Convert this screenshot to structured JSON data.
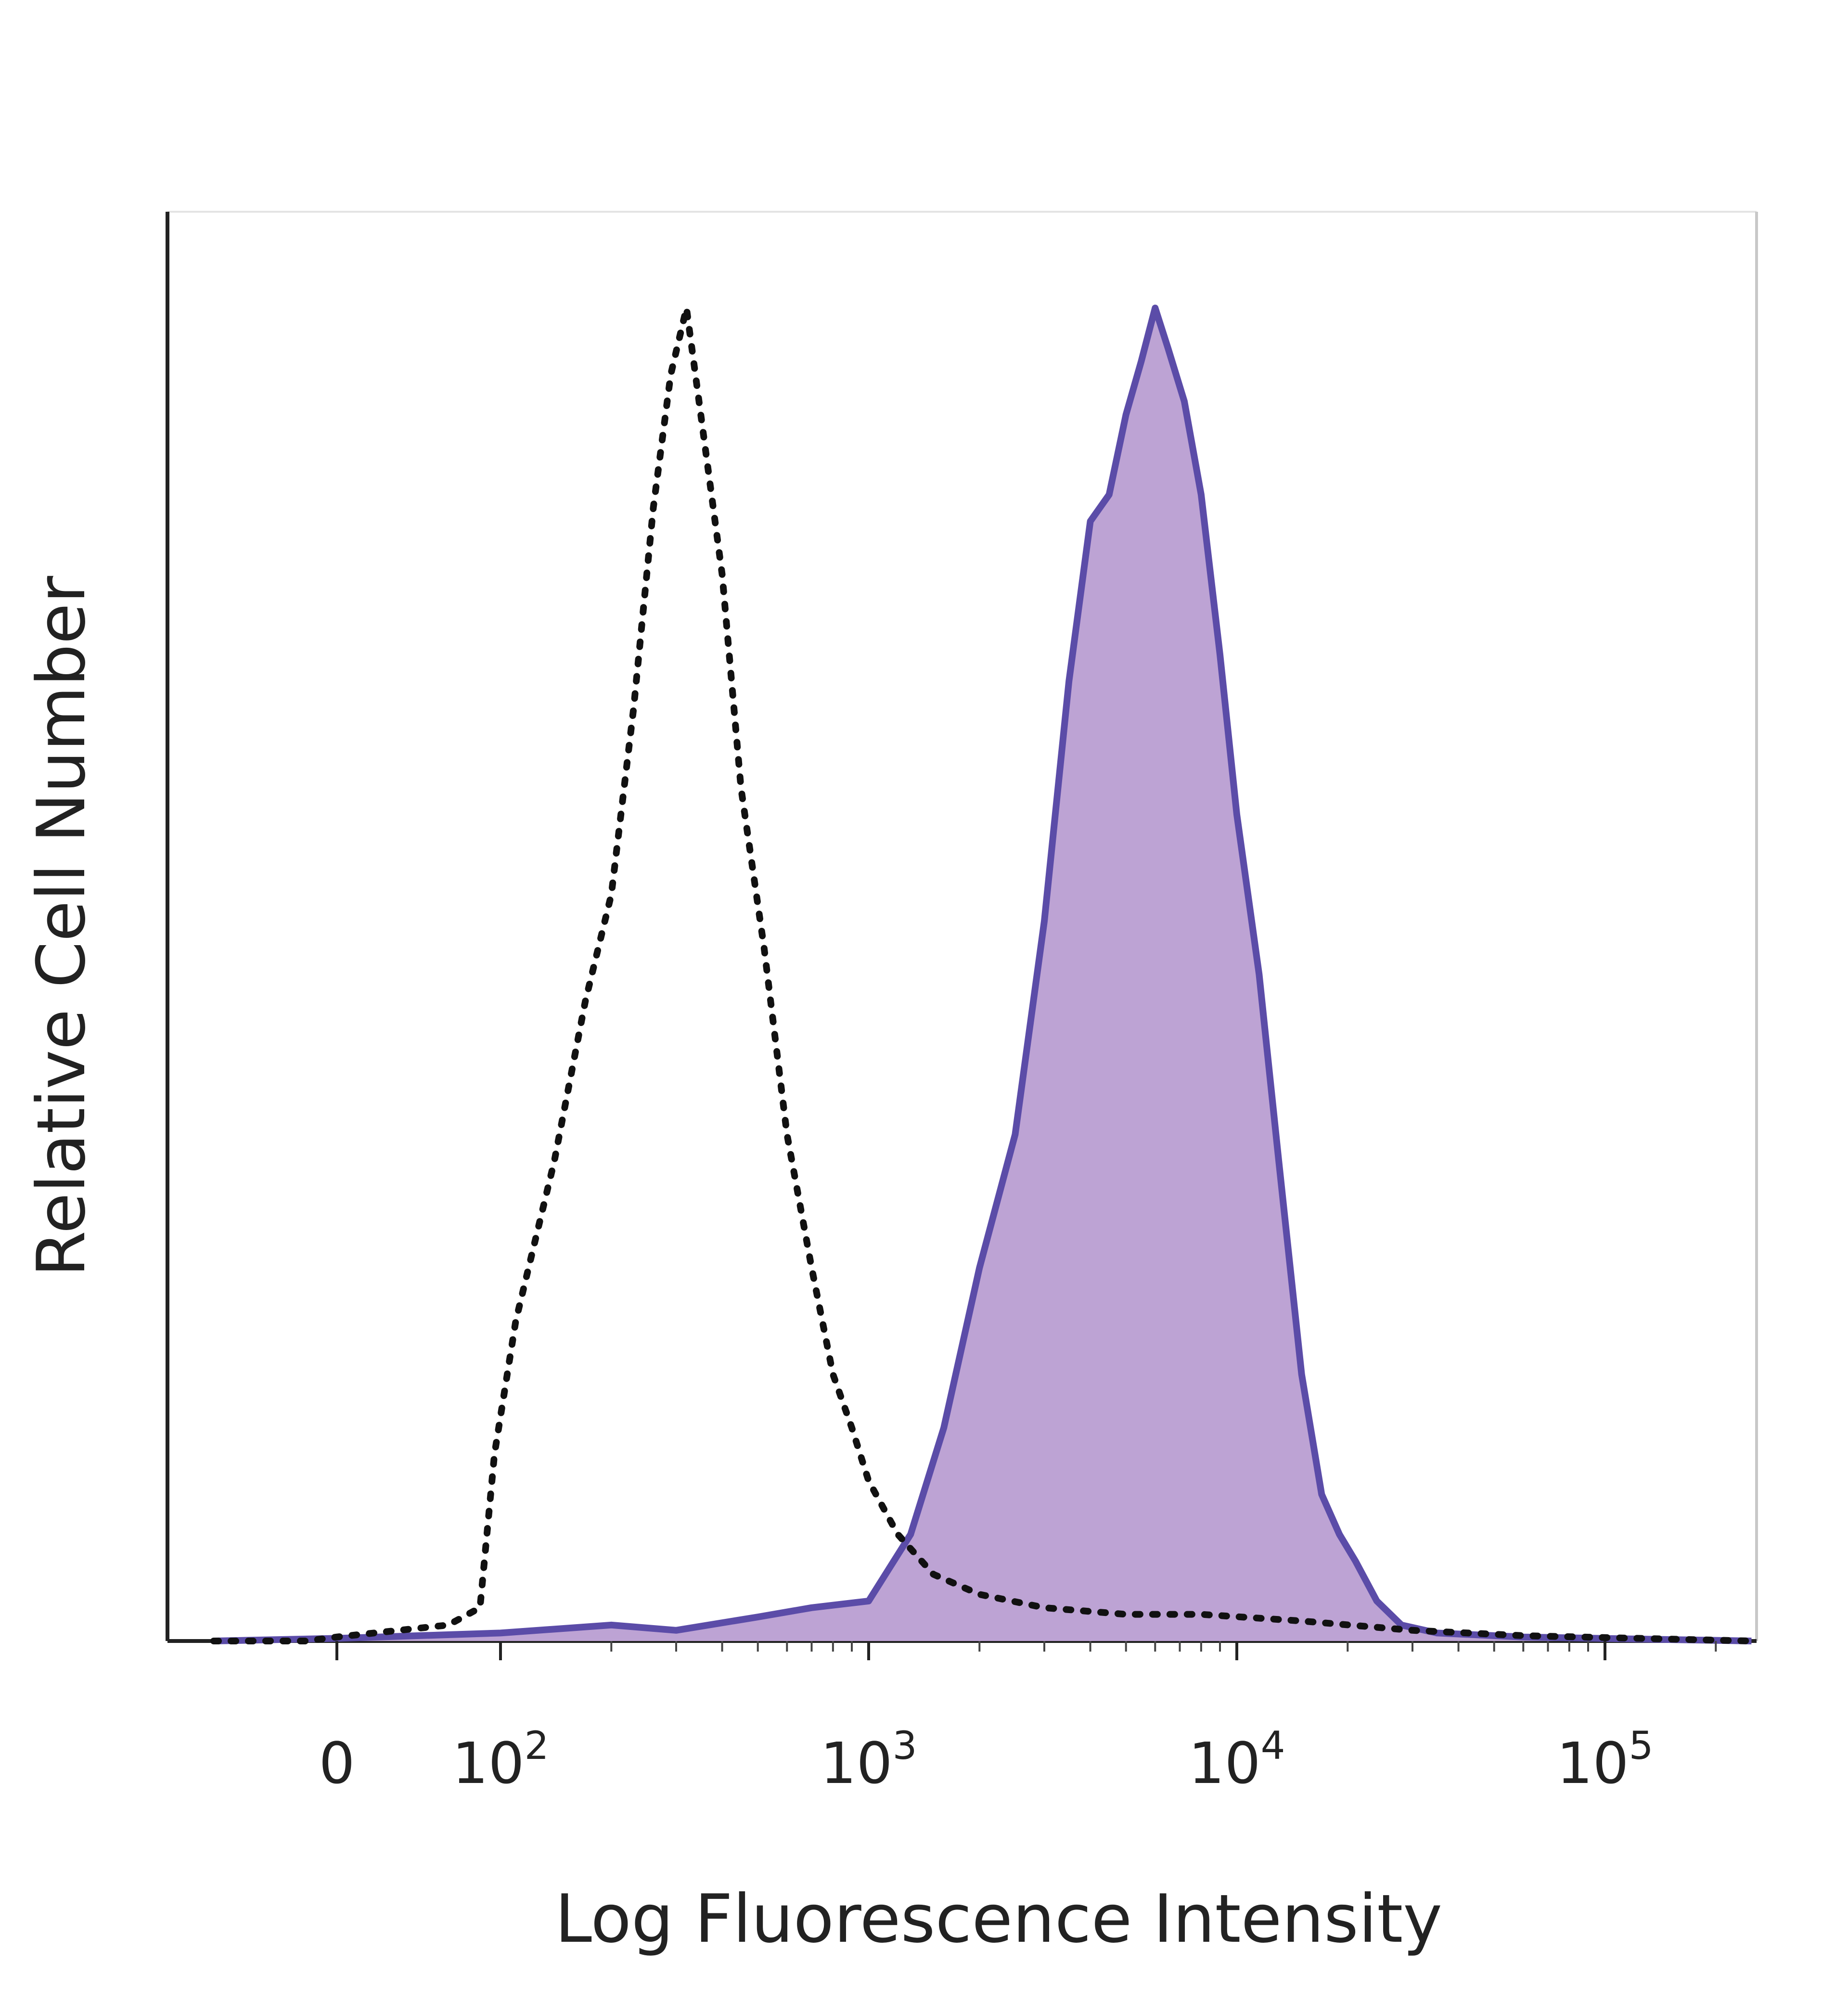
{
  "chart_data": {
    "type": "area",
    "title": "",
    "xlabel": "Log Fluorescence Intensity",
    "ylabel": "Relative Cell Number",
    "x_scale": "biexponential (log)",
    "x_ticks": [
      {
        "label": "0",
        "value": 0
      },
      {
        "label": "10",
        "sup": "2",
        "value": 100
      },
      {
        "label": "10",
        "sup": "3",
        "value": 1000
      },
      {
        "label": "10",
        "sup": "4",
        "value": 10000
      },
      {
        "label": "10",
        "sup": "5",
        "value": 100000
      }
    ],
    "xlim": [
      -80,
      250000
    ],
    "ylim": [
      0,
      1
    ],
    "y_ticks": "none",
    "grid": false,
    "legend": "none",
    "series": [
      {
        "style": "dotted",
        "color": "#111111",
        "points": [
          [
            -80,
            0.0
          ],
          [
            -20,
            0.0
          ],
          [
            0,
            0.003
          ],
          [
            40,
            0.012
          ],
          [
            70,
            0.025
          ],
          [
            90,
            0.14
          ],
          [
            110,
            0.24
          ],
          [
            140,
            0.36
          ],
          [
            170,
            0.48
          ],
          [
            200,
            0.56
          ],
          [
            230,
            0.7
          ],
          [
            260,
            0.85
          ],
          [
            290,
            0.95
          ],
          [
            320,
            1.0
          ],
          [
            350,
            0.92
          ],
          [
            400,
            0.8
          ],
          [
            450,
            0.64
          ],
          [
            520,
            0.52
          ],
          [
            600,
            0.38
          ],
          [
            700,
            0.28
          ],
          [
            800,
            0.2
          ],
          [
            900,
            0.16
          ],
          [
            1000,
            0.12
          ],
          [
            1200,
            0.08
          ],
          [
            1500,
            0.05
          ],
          [
            2000,
            0.035
          ],
          [
            3000,
            0.025
          ],
          [
            5000,
            0.02
          ],
          [
            8000,
            0.02
          ],
          [
            15000,
            0.015
          ],
          [
            30000,
            0.008
          ],
          [
            60000,
            0.004
          ],
          [
            250000,
            0.0
          ]
        ]
      },
      {
        "style": "filled",
        "color": "#5b4ca8",
        "fill": "#bda3d4",
        "points": [
          [
            -80,
            0.0
          ],
          [
            0,
            0.002
          ],
          [
            100,
            0.006
          ],
          [
            200,
            0.012
          ],
          [
            300,
            0.008
          ],
          [
            500,
            0.018
          ],
          [
            700,
            0.025
          ],
          [
            1000,
            0.03
          ],
          [
            1300,
            0.08
          ],
          [
            1600,
            0.16
          ],
          [
            2000,
            0.28
          ],
          [
            2500,
            0.38
          ],
          [
            3000,
            0.54
          ],
          [
            3500,
            0.72
          ],
          [
            4000,
            0.84
          ],
          [
            4500,
            0.86
          ],
          [
            5000,
            0.92
          ],
          [
            5500,
            0.96
          ],
          [
            6000,
            1.0
          ],
          [
            6500,
            0.97
          ],
          [
            7200,
            0.93
          ],
          [
            8000,
            0.86
          ],
          [
            9000,
            0.74
          ],
          [
            10000,
            0.62
          ],
          [
            11500,
            0.5
          ],
          [
            13000,
            0.36
          ],
          [
            15000,
            0.2
          ],
          [
            17000,
            0.11
          ],
          [
            19000,
            0.08
          ],
          [
            21000,
            0.06
          ],
          [
            24000,
            0.03
          ],
          [
            28000,
            0.012
          ],
          [
            35000,
            0.006
          ],
          [
            60000,
            0.003
          ],
          [
            250000,
            0.0
          ]
        ]
      }
    ]
  }
}
